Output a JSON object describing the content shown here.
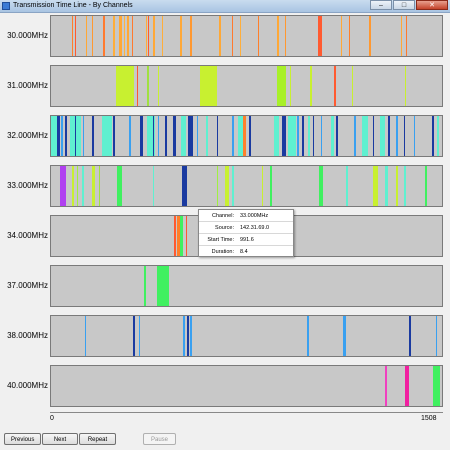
{
  "window": {
    "title": "Transmission Time Line - By Channels",
    "controls": [
      {
        "symbol": "–",
        "icon": "minimize-icon"
      },
      {
        "symbol": "□",
        "icon": "maximize-icon"
      },
      {
        "symbol": "✕",
        "icon": "close-icon"
      }
    ]
  },
  "axis": {
    "min": 0,
    "max": 1508,
    "min_label": "0",
    "max_label": "1508"
  },
  "channels": [
    {
      "label": "30.000MHz",
      "events": [
        {
          "start": 80,
          "duration": 6,
          "color": "#ff7f2a"
        },
        {
          "start": 92,
          "duration": 4,
          "color": "#ff5a30"
        },
        {
          "start": 134,
          "duration": 5,
          "color": "#ffa836"
        },
        {
          "start": 158,
          "duration": 4,
          "color": "#ff9830"
        },
        {
          "start": 202,
          "duration": 4,
          "color": "#ff7a2e"
        },
        {
          "start": 241,
          "duration": 4,
          "color": "#ffae3a"
        },
        {
          "start": 262,
          "duration": 10,
          "color": "#ffa836"
        },
        {
          "start": 280,
          "duration": 4,
          "color": "#ffb340"
        },
        {
          "start": 292,
          "duration": 10,
          "color": "#ffa836"
        },
        {
          "start": 312,
          "duration": 4,
          "color": "#ff7a2e"
        },
        {
          "start": 365,
          "duration": 4,
          "color": "#ffae3a"
        },
        {
          "start": 374,
          "duration": 4,
          "color": "#ff5a30"
        },
        {
          "start": 395,
          "duration": 4,
          "color": "#ffa836"
        },
        {
          "start": 428,
          "duration": 4,
          "color": "#ffae3a"
        },
        {
          "start": 498,
          "duration": 4,
          "color": "#ffa836"
        },
        {
          "start": 538,
          "duration": 4,
          "color": "#ff9830"
        },
        {
          "start": 648,
          "duration": 6,
          "color": "#ffa836"
        },
        {
          "start": 698,
          "duration": 4,
          "color": "#ff7a2e"
        },
        {
          "start": 728,
          "duration": 4,
          "color": "#ffae3a"
        },
        {
          "start": 798,
          "duration": 4,
          "color": "#ff7f2a"
        },
        {
          "start": 872,
          "duration": 4,
          "color": "#ffa836"
        },
        {
          "start": 902,
          "duration": 5,
          "color": "#ff9830"
        },
        {
          "start": 1031,
          "duration": 15,
          "color": "#ff5a30"
        },
        {
          "start": 1118,
          "duration": 4,
          "color": "#ffa836"
        },
        {
          "start": 1148,
          "duration": 4,
          "color": "#ff7f2a"
        },
        {
          "start": 1228,
          "duration": 5,
          "color": "#ff9830"
        },
        {
          "start": 1348,
          "duration": 5,
          "color": "#ffa836"
        },
        {
          "start": 1368,
          "duration": 4,
          "color": "#ff7a2e"
        }
      ]
    },
    {
      "label": "31.000MHz",
      "events": [
        {
          "start": 252,
          "duration": 70,
          "color": "#c8f030"
        },
        {
          "start": 330,
          "duration": 5,
          "color": "#ff5a30"
        },
        {
          "start": 372,
          "duration": 5,
          "color": "#a0e040"
        },
        {
          "start": 412,
          "duration": 6,
          "color": "#c8f030"
        },
        {
          "start": 576,
          "duration": 65,
          "color": "#c8f030"
        },
        {
          "start": 870,
          "duration": 35,
          "color": "#a8f028"
        },
        {
          "start": 920,
          "duration": 5,
          "color": "#c8f030"
        },
        {
          "start": 1000,
          "duration": 8,
          "color": "#c8f030"
        },
        {
          "start": 1090,
          "duration": 8,
          "color": "#ff5a30"
        },
        {
          "start": 1160,
          "duration": 5,
          "color": "#c8f030"
        },
        {
          "start": 1365,
          "duration": 5,
          "color": "#c8f030"
        }
      ]
    },
    {
      "label": "32.000MHz",
      "events": [
        {
          "start": 0,
          "duration": 30,
          "color": "#5ff0d0"
        },
        {
          "start": 25,
          "duration": 8,
          "color": "#1a3aa0"
        },
        {
          "start": 40,
          "duration": 5,
          "color": "#39a0f0"
        },
        {
          "start": 55,
          "duration": 8,
          "color": "#1a3aa0"
        },
        {
          "start": 72,
          "duration": 45,
          "color": "#5ff0d0"
        },
        {
          "start": 92,
          "duration": 6,
          "color": "#1a3aa0"
        },
        {
          "start": 122,
          "duration": 5,
          "color": "#39a0f0"
        },
        {
          "start": 160,
          "duration": 6,
          "color": "#1a3aa0"
        },
        {
          "start": 195,
          "duration": 40,
          "color": "#5ff0d0"
        },
        {
          "start": 240,
          "duration": 5,
          "color": "#1a3aa0"
        },
        {
          "start": 300,
          "duration": 8,
          "color": "#39a0f0"
        },
        {
          "start": 345,
          "duration": 10,
          "color": "#1a3aa0"
        },
        {
          "start": 370,
          "duration": 30,
          "color": "#5ff0d0"
        },
        {
          "start": 392,
          "duration": 5,
          "color": "#1a3aa0"
        },
        {
          "start": 412,
          "duration": 5,
          "color": "#39a0f0"
        },
        {
          "start": 440,
          "duration": 8,
          "color": "#1a3aa0"
        },
        {
          "start": 472,
          "duration": 12,
          "color": "#1a3aa0"
        },
        {
          "start": 500,
          "duration": 22,
          "color": "#5ff0d0"
        },
        {
          "start": 530,
          "duration": 18,
          "color": "#1a3aa0"
        },
        {
          "start": 562,
          "duration": 5,
          "color": "#39a0f0"
        },
        {
          "start": 596,
          "duration": 8,
          "color": "#5ff0d0"
        },
        {
          "start": 640,
          "duration": 5,
          "color": "#1a3aa0"
        },
        {
          "start": 700,
          "duration": 5,
          "color": "#39a0f0"
        },
        {
          "start": 720,
          "duration": 25,
          "color": "#5ff0d0"
        },
        {
          "start": 742,
          "duration": 10,
          "color": "#ff7f2a"
        },
        {
          "start": 764,
          "duration": 8,
          "color": "#1a3aa0"
        },
        {
          "start": 860,
          "duration": 20,
          "color": "#5ff0d0"
        },
        {
          "start": 890,
          "duration": 18,
          "color": "#1a3aa0"
        },
        {
          "start": 915,
          "duration": 30,
          "color": "#5ff0d0"
        },
        {
          "start": 950,
          "duration": 8,
          "color": "#39a0f0"
        },
        {
          "start": 968,
          "duration": 6,
          "color": "#1a3aa0"
        },
        {
          "start": 990,
          "duration": 10,
          "color": "#5ff0d0"
        },
        {
          "start": 1010,
          "duration": 5,
          "color": "#1a3aa0"
        },
        {
          "start": 1040,
          "duration": 5,
          "color": "#39a0f0"
        },
        {
          "start": 1080,
          "duration": 10,
          "color": "#5ff0d0"
        },
        {
          "start": 1100,
          "duration": 8,
          "color": "#1a3aa0"
        },
        {
          "start": 1170,
          "duration": 5,
          "color": "#39a0f0"
        },
        {
          "start": 1200,
          "duration": 22,
          "color": "#5ff0d0"
        },
        {
          "start": 1240,
          "duration": 6,
          "color": "#1a3aa0"
        },
        {
          "start": 1270,
          "duration": 18,
          "color": "#5ff0d0"
        },
        {
          "start": 1300,
          "duration": 5,
          "color": "#1a3aa0"
        },
        {
          "start": 1330,
          "duration": 10,
          "color": "#39a0f0"
        },
        {
          "start": 1360,
          "duration": 5,
          "color": "#1a3aa0"
        },
        {
          "start": 1400,
          "duration": 5,
          "color": "#39a0f0"
        },
        {
          "start": 1468,
          "duration": 8,
          "color": "#1a3aa0"
        },
        {
          "start": 1488,
          "duration": 8,
          "color": "#5ff0d0"
        }
      ]
    },
    {
      "label": "33.000MHz",
      "events": [
        {
          "start": 35,
          "duration": 22,
          "color": "#b040f0"
        },
        {
          "start": 80,
          "duration": 8,
          "color": "#c8f030"
        },
        {
          "start": 100,
          "duration": 5,
          "color": "#a0f040"
        },
        {
          "start": 118,
          "duration": 8,
          "color": "#5ff0d0"
        },
        {
          "start": 158,
          "duration": 10,
          "color": "#c8f030"
        },
        {
          "start": 185,
          "duration": 5,
          "color": "#a0e040"
        },
        {
          "start": 253,
          "duration": 22,
          "color": "#40f060"
        },
        {
          "start": 393,
          "duration": 6,
          "color": "#5ff0d0"
        },
        {
          "start": 505,
          "duration": 18,
          "color": "#1a3aa0"
        },
        {
          "start": 640,
          "duration": 5,
          "color": "#a0f040"
        },
        {
          "start": 672,
          "duration": 15,
          "color": "#c8f030"
        },
        {
          "start": 700,
          "duration": 4,
          "color": "#5ff0d0"
        },
        {
          "start": 812,
          "duration": 5,
          "color": "#c8f030"
        },
        {
          "start": 843,
          "duration": 8,
          "color": "#40f060"
        },
        {
          "start": 1032,
          "duration": 18,
          "color": "#40f060"
        },
        {
          "start": 1138,
          "duration": 8,
          "color": "#5ff0d0"
        },
        {
          "start": 1240,
          "duration": 22,
          "color": "#c8f030"
        },
        {
          "start": 1290,
          "duration": 8,
          "color": "#5ff0d0"
        },
        {
          "start": 1332,
          "duration": 6,
          "color": "#c8f030"
        },
        {
          "start": 1362,
          "duration": 5,
          "color": "#5ff0d0"
        },
        {
          "start": 1444,
          "duration": 8,
          "color": "#40f060"
        }
      ]
    },
    {
      "label": "34.000MHz",
      "events": [
        {
          "start": 474,
          "duration": 8,
          "color": "#ff5a30"
        },
        {
          "start": 486,
          "duration": 10,
          "color": "#ff7f2a"
        },
        {
          "start": 498,
          "duration": 10,
          "color": "#40f060"
        },
        {
          "start": 520,
          "duration": 5,
          "color": "#ff5a30"
        }
      ]
    },
    {
      "label": "37.000MHz",
      "events": [
        {
          "start": 360,
          "duration": 6,
          "color": "#40f060"
        },
        {
          "start": 410,
          "duration": 45,
          "color": "#40f060"
        }
      ]
    },
    {
      "label": "38.000MHz",
      "events": [
        {
          "start": 130,
          "duration": 3,
          "color": "#39a0f0"
        },
        {
          "start": 318,
          "duration": 6,
          "color": "#1a3aa0"
        },
        {
          "start": 338,
          "duration": 4,
          "color": "#39a0f0"
        },
        {
          "start": 510,
          "duration": 8,
          "color": "#39a0f0"
        },
        {
          "start": 526,
          "duration": 4,
          "color": "#1a3aa0"
        },
        {
          "start": 536,
          "duration": 6,
          "color": "#39a0f0"
        },
        {
          "start": 988,
          "duration": 3,
          "color": "#39a0f0"
        },
        {
          "start": 1128,
          "duration": 8,
          "color": "#39a0f0"
        },
        {
          "start": 1382,
          "duration": 6,
          "color": "#1a3aa0"
        },
        {
          "start": 1484,
          "duration": 6,
          "color": "#39a0f0"
        }
      ]
    },
    {
      "label": "40.000MHz",
      "events": [
        {
          "start": 1290,
          "duration": 5,
          "color": "#f040c0"
        },
        {
          "start": 1367,
          "duration": 12,
          "color": "#f020a0"
        },
        {
          "start": 1472,
          "duration": 30,
          "color": "#40f060"
        }
      ]
    }
  ],
  "tooltip": {
    "rows": [
      {
        "label": "Channel:",
        "value": "33.000MHz"
      },
      {
        "label": "Source:",
        "value": "142.31.69.0"
      },
      {
        "label": "Start Time:",
        "value": "991.6"
      },
      {
        "label": "Duration:",
        "value": "8.4"
      }
    ]
  },
  "buttons": [
    {
      "label": "Previous",
      "name": "previous-button",
      "enabled": true
    },
    {
      "label": "Next",
      "name": "next-button",
      "enabled": true
    },
    {
      "label": "Repeat",
      "name": "repeat-button",
      "enabled": true
    },
    {
      "label": "Pause",
      "name": "pause-button",
      "enabled": false
    }
  ]
}
